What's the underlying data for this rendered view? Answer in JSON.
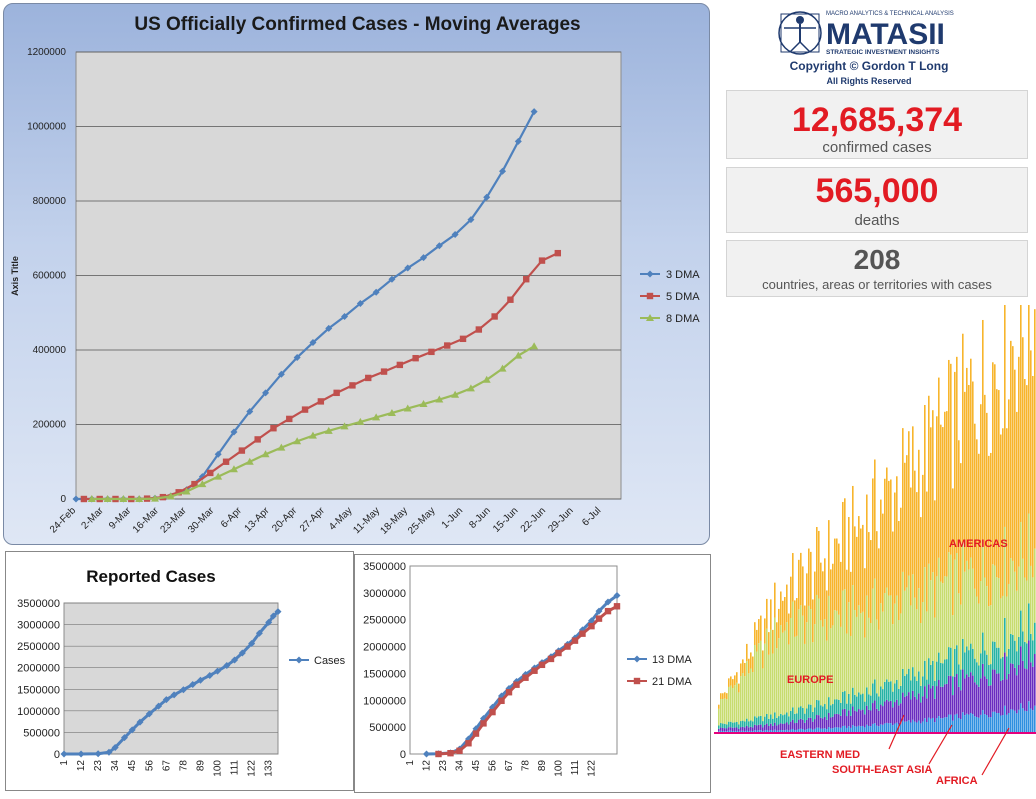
{
  "logo": {
    "topline": "MACRO ANALYTICS & TECHNICAL ANALYSIS",
    "brand": "MATASII",
    "tagline": "STRATEGIC INVESTMENT INSIGHTS",
    "copyright": "Copyright © Gordon T Long",
    "rights": "All Rights Reserved"
  },
  "stats": [
    {
      "value": "12,685,374",
      "label": "confirmed cases"
    },
    {
      "value": "565,000",
      "label": "deaths"
    },
    {
      "value": "208",
      "label": "countries, areas or territories with cases"
    }
  ],
  "region_labels": {
    "americas": "AMERICAS",
    "europe": "EUROPE",
    "eastern_med": "EASTERN MED",
    "south_east_asia": "SOUTH-EAST ASIA",
    "africa": "AFRICA"
  },
  "colors": {
    "dma3": "#4f81bd",
    "dma5": "#c0504d",
    "dma8": "#9bbb59",
    "americas": "#f7b52c",
    "europe": "#c7dc6e",
    "eastern_med": "#26b3a4",
    "south_east_asia": "#6a2cc0",
    "africa": "#2f8fe0",
    "accent_red": "#e21b23"
  },
  "chart_data": [
    {
      "id": "moving-averages",
      "type": "line",
      "title": "US Officially Confirmed Cases - Moving Averages",
      "ylabel": "Axis Title",
      "ylim": [
        0,
        1200000
      ],
      "yticks": [
        0,
        200000,
        400000,
        600000,
        800000,
        1000000,
        1200000
      ],
      "xlim_days": [
        0,
        138
      ],
      "xtick_labels": [
        "24-Feb",
        "2-Mar",
        "9-Mar",
        "16-Mar",
        "23-Mar",
        "30-Mar",
        "6-Apr",
        "13-Apr",
        "20-Apr",
        "27-Apr",
        "4-May",
        "11-May",
        "18-May",
        "25-May",
        "1-Jun",
        "8-Jun",
        "15-Jun",
        "22-Jun",
        "29-Jun",
        "6-Jul"
      ],
      "legend_position": "right",
      "series": [
        {
          "name": "3 DMA",
          "start_day": 0,
          "interval_days": 4,
          "values": [
            0,
            0,
            0,
            0,
            0,
            2000,
            8000,
            25000,
            60000,
            120000,
            180000,
            235000,
            285000,
            335000,
            380000,
            420000,
            458000,
            490000,
            525000,
            555000,
            590000,
            620000,
            648000,
            680000,
            710000,
            750000,
            810000,
            880000,
            960000,
            1040000
          ]
        },
        {
          "name": "5 DMA",
          "start_day": 2,
          "interval_days": 4,
          "values": [
            0,
            0,
            0,
            0,
            1000,
            5000,
            18000,
            40000,
            70000,
            100000,
            130000,
            160000,
            190000,
            215000,
            240000,
            262000,
            285000,
            305000,
            325000,
            342000,
            360000,
            378000,
            395000,
            412000,
            430000,
            455000,
            490000,
            535000,
            590000,
            640000,
            660000
          ]
        },
        {
          "name": "8 DMA",
          "start_day": 4,
          "interval_days": 4,
          "values": [
            0,
            0,
            0,
            0,
            1000,
            7000,
            20000,
            40000,
            60000,
            80000,
            100000,
            120000,
            138000,
            155000,
            170000,
            183000,
            195000,
            207000,
            219000,
            231000,
            243000,
            255000,
            267000,
            280000,
            297000,
            320000,
            350000,
            385000,
            410000
          ]
        }
      ]
    },
    {
      "id": "reported-cases",
      "type": "line",
      "title": "Reported Cases",
      "ylim": [
        0,
        3500000
      ],
      "yticks": [
        0,
        500000,
        1000000,
        1500000,
        2000000,
        2500000,
        3000000,
        3500000
      ],
      "xtick_labels": [
        "1",
        "12",
        "23",
        "34",
        "45",
        "56",
        "67",
        "78",
        "89",
        "100",
        "111",
        "122",
        "133"
      ],
      "xlim": [
        1,
        139
      ],
      "legend_position": "right",
      "series": [
        {
          "name": "Cases",
          "x": [
            1,
            12,
            23,
            30,
            34,
            40,
            45,
            50,
            56,
            62,
            67,
            72,
            78,
            84,
            89,
            95,
            100,
            106,
            111,
            116,
            122,
            127,
            133,
            136,
            139
          ],
          "values": [
            0,
            0,
            5000,
            40000,
            150000,
            380000,
            560000,
            740000,
            930000,
            1110000,
            1260000,
            1370000,
            1490000,
            1610000,
            1710000,
            1820000,
            1920000,
            2050000,
            2180000,
            2340000,
            2560000,
            2800000,
            3050000,
            3200000,
            3300000
          ]
        }
      ]
    },
    {
      "id": "long-dma",
      "type": "line",
      "ylim": [
        0,
        3500000
      ],
      "yticks": [
        0,
        500000,
        1000000,
        1500000,
        2000000,
        2500000,
        3000000,
        3500000
      ],
      "xtick_labels": [
        "1",
        "12",
        "23",
        "34",
        "45",
        "56",
        "67",
        "78",
        "89",
        "100",
        "111",
        "122"
      ],
      "xlim": [
        1,
        139
      ],
      "legend_position": "right",
      "series": [
        {
          "name": "13 DMA",
          "x": [
            12,
            20,
            28,
            34,
            40,
            45,
            50,
            56,
            62,
            67,
            72,
            78,
            84,
            89,
            95,
            100,
            106,
            111,
            116,
            122,
            127,
            133,
            139
          ],
          "values": [
            0,
            5000,
            20000,
            90000,
            280000,
            470000,
            660000,
            870000,
            1080000,
            1220000,
            1350000,
            1480000,
            1600000,
            1700000,
            1810000,
            1920000,
            2040000,
            2160000,
            2310000,
            2480000,
            2660000,
            2830000,
            2950000
          ]
        },
        {
          "name": "21 DMA",
          "x": [
            20,
            28,
            34,
            40,
            45,
            50,
            56,
            62,
            67,
            72,
            78,
            84,
            89,
            95,
            100,
            106,
            111,
            116,
            122,
            127,
            133,
            139
          ],
          "values": [
            0,
            15000,
            60000,
            200000,
            380000,
            570000,
            780000,
            990000,
            1150000,
            1290000,
            1420000,
            1550000,
            1660000,
            1770000,
            1880000,
            2000000,
            2110000,
            2240000,
            2380000,
            2520000,
            2660000,
            2750000
          ]
        }
      ]
    },
    {
      "id": "regional-cases",
      "type": "bar",
      "stacked": true,
      "series": [
        {
          "name": "AFRICA"
        },
        {
          "name": "SOUTH-EAST ASIA"
        },
        {
          "name": "EASTERN MED"
        },
        {
          "name": "EUROPE"
        },
        {
          "name": "AMERICAS"
        }
      ]
    }
  ]
}
